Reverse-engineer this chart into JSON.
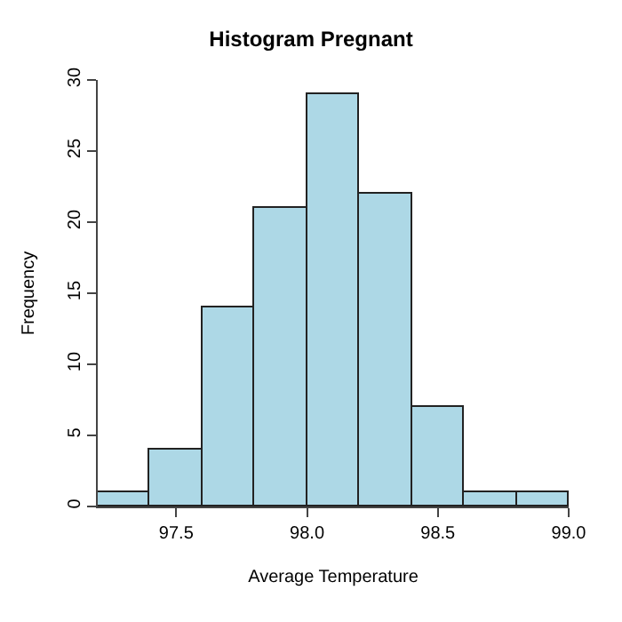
{
  "chart_data": {
    "type": "histogram",
    "title": "Histogram Pregnant",
    "xlabel": "Average Temperature",
    "ylabel": "Frequency",
    "bins": [
      97.2,
      97.4,
      97.6,
      97.8,
      98.0,
      98.2,
      98.4,
      98.6,
      98.8,
      99.0
    ],
    "values": [
      1,
      4,
      14,
      21,
      29,
      22,
      7,
      1,
      1
    ],
    "color": "#add8e6",
    "xlim": [
      97.2,
      99.0
    ],
    "xticks": [
      97.5,
      {
        "value": 98,
        "label": "98.0"
      },
      98.5,
      {
        "value": 99,
        "label": "99.0"
      }
    ],
    "ylim": [
      0,
      30
    ],
    "yticks": [
      0,
      5,
      10,
      15,
      20,
      25,
      30
    ]
  }
}
